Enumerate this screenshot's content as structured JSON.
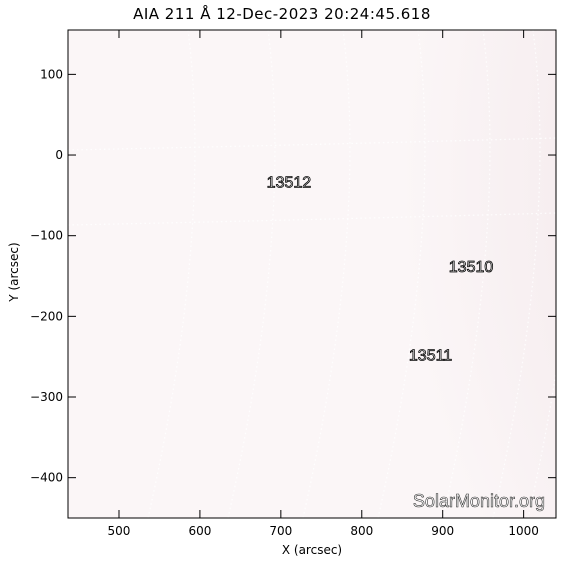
{
  "header": {
    "title": "AIA 211 Å 12-Dec-2023 20:24:45.618"
  },
  "axes": {
    "xlabel": "X (arcsec)",
    "ylabel": "Y (arcsec)",
    "x_ticks": [
      "500",
      "600",
      "700",
      "800",
      "900",
      "1000"
    ],
    "y_ticks": [
      "100",
      "0",
      "−100",
      "−200",
      "−300",
      "−400"
    ],
    "xlim": [
      437,
      1040
    ],
    "ylim": [
      -450,
      155
    ],
    "grid": "on"
  },
  "active_regions": [
    {
      "label": "13512",
      "x": 710,
      "y": -40
    },
    {
      "label": "13510",
      "x": 935,
      "y": -145
    },
    {
      "label": "13511",
      "x": 885,
      "y": -255
    }
  ],
  "watermark": "SolarMonitor.org",
  "colors": {
    "disk": "#b58a96",
    "dark_region": "#8f5f71",
    "limb": "#ecd9dd",
    "grid": "#ffffff"
  }
}
